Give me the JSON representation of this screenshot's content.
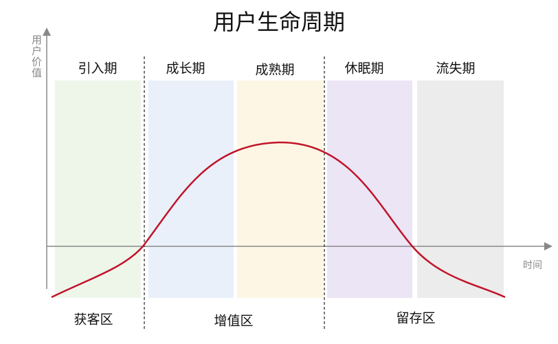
{
  "title": "用户生命周期",
  "y_axis_label": "用户价值",
  "x_axis_label": "时间",
  "stages": [
    "引入期",
    "成长期",
    "成熟期",
    "休眠期",
    "流失期"
  ],
  "zones": [
    "获客区",
    "增值区",
    "留存区"
  ]
}
